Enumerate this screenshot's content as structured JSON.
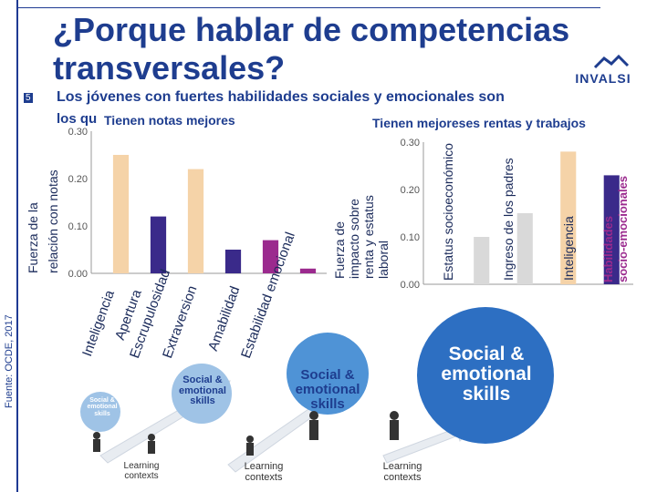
{
  "slide": {
    "title": "¿Porque hablar de competencias transversales?",
    "page_number": "5",
    "subtitle": "Los jóvenes con fuertes habilidades sociales y emocionales son",
    "subtitle_line2_prefix": "los qu",
    "source": "Fuente: OCDE, 2017",
    "logo": "INVALSI"
  },
  "left_chart": {
    "title": "Tienen notas mejores",
    "ylabel_line1": "Fuerza de la",
    "ylabel_line2": "relación con notas"
  },
  "right_chart": {
    "title": "Tienen mejoreses rentas y trabajos",
    "ylabel_line1": "Fuerza de",
    "ylabel_line2": "impacto sobre",
    "ylabel_line3": "renta y estatus",
    "ylabel_line4": "laboral",
    "socio_label_line1": "Habilidades",
    "socio_label_line2": "socio-emocionales"
  },
  "chart_data": [
    {
      "type": "bar",
      "categories": [
        "Inteligencia",
        "Apertura",
        "Escrupulosidad",
        "Extraversion",
        "Amabilidad",
        "Estabilidad emocional"
      ],
      "values": [
        0.25,
        0.12,
        0.22,
        0.05,
        0.07,
        0.01
      ],
      "colors": [
        "#f5d3a8",
        "#3a2a8a",
        "#f5d3a8",
        "#3a2a8a",
        "#9b2a8e",
        "#9b2a8e"
      ],
      "yticks": [
        "0.00",
        "0.10",
        "0.20",
        "0.30"
      ],
      "ylim": [
        0,
        0.3
      ]
    },
    {
      "type": "bar",
      "categories": [
        "Estatus socioeconómico",
        "Ingreso de los padres",
        "Inteligencia",
        "Habilidades socio-emocionales"
      ],
      "values": [
        0.1,
        0.15,
        0.28,
        0.23
      ],
      "colors": [
        "#d9d9d9",
        "#d9d9d9",
        "#f5d3a8",
        "#3a2a8a"
      ],
      "yticks": [
        "0.00",
        "0.10",
        "0.20",
        "0.30"
      ],
      "ylim": [
        0,
        0.3
      ]
    }
  ],
  "diagram": {
    "small_blob": "Social & emotional skills",
    "medium_blob": "Social & emotional skills",
    "large_blob_1": "Social & emotional skills",
    "xlarge_blob": "Social & emotional skills",
    "context_1": "Learning contexts",
    "context_2": "Learning contexts",
    "context_3": "Learning contexts"
  }
}
